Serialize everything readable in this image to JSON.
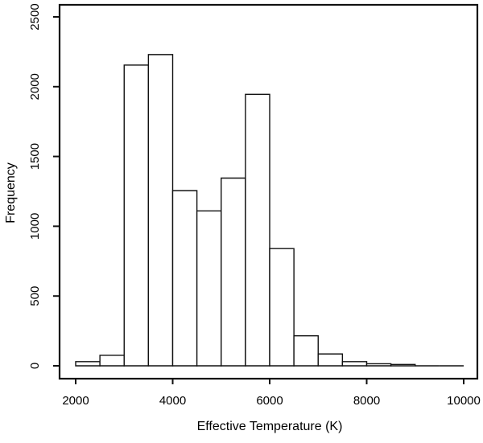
{
  "figure": {
    "background": "#ffffff",
    "foreground": "#000000"
  },
  "chart_data": {
    "type": "bar",
    "subtype": "histogram",
    "title": "",
    "xlabel": "Effective Temperature (K)",
    "ylabel": "Frequency",
    "bin_edges": [
      2000,
      2500,
      3000,
      3500,
      4000,
      4500,
      5000,
      5500,
      6000,
      6500,
      7000,
      7500,
      8000,
      8500,
      9000,
      9500,
      10000
    ],
    "counts": [
      30,
      75,
      2155,
      2230,
      1255,
      1110,
      1345,
      1945,
      840,
      215,
      85,
      30,
      15,
      10,
      0,
      0
    ],
    "x_ticks": [
      2000,
      4000,
      6000,
      8000,
      10000
    ],
    "y_ticks": [
      0,
      500,
      1000,
      1500,
      2000,
      2500
    ],
    "xlim": [
      2000,
      10000
    ],
    "ylim": [
      0,
      2500
    ],
    "bar_fill": "#ffffff",
    "bar_stroke": "#111111",
    "axis_color": "#111111",
    "grid": false,
    "legend": false
  }
}
